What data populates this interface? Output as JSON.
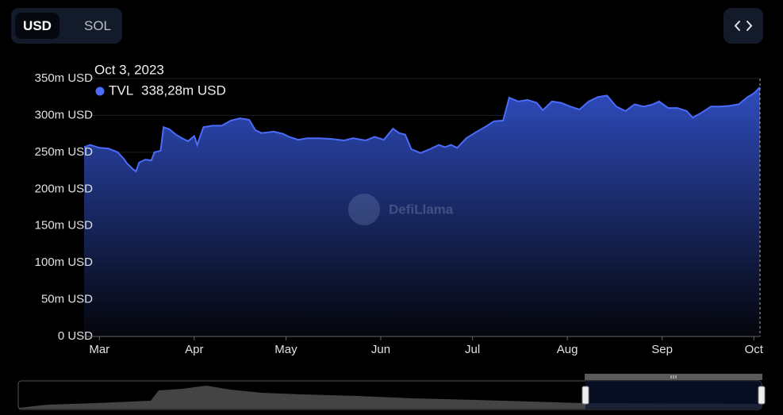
{
  "toggle": [
    "USD",
    "SOL"
  ],
  "watermark": "DefiLlama",
  "chart_data": {
    "type": "area",
    "tooltip": {
      "date": "Oct 3, 2023",
      "value_label": "338,28m USD"
    },
    "x": [
      -5,
      -3,
      0,
      3,
      6,
      8,
      9,
      11,
      12,
      13,
      15,
      17,
      18,
      20,
      21,
      23,
      25,
      27,
      29,
      31,
      32,
      34,
      37,
      40,
      43,
      46,
      49,
      51,
      53,
      57,
      60,
      62,
      65,
      68,
      72,
      76,
      80,
      83,
      87,
      90,
      93,
      96,
      98,
      100,
      102,
      105,
      108,
      111,
      113,
      115,
      117,
      120,
      123,
      126,
      129,
      132,
      134,
      137,
      140,
      143,
      145,
      148,
      151,
      154,
      157,
      160,
      163,
      166,
      169,
      172,
      175,
      178,
      181,
      183,
      186,
      189,
      192,
      194,
      197,
      200,
      203,
      206,
      209,
      212,
      214,
      216
    ],
    "series": [
      {
        "name": "TVL",
        "color": "#4b6bfb",
        "values": [
          257,
          260,
          256,
          255,
          250,
          241,
          235,
          227,
          224,
          236,
          240,
          239,
          250,
          252,
          284,
          281,
          274,
          269,
          265,
          272,
          260,
          284,
          286,
          286,
          293,
          296,
          294,
          280,
          276,
          278,
          275,
          271,
          267,
          269,
          269,
          268,
          266,
          269,
          266,
          271,
          267,
          282,
          276,
          274,
          254,
          249,
          254,
          260,
          257,
          260,
          256,
          269,
          277,
          284,
          292,
          293,
          324,
          319,
          321,
          317,
          307,
          319,
          317,
          312,
          308,
          319,
          325,
          327,
          312,
          306,
          315,
          312,
          315,
          319,
          310,
          310,
          306,
          297,
          304,
          312,
          312,
          313,
          315,
          325,
          330,
          338.28
        ]
      }
    ],
    "xlim": [
      -5,
      216
    ],
    "xticks": [
      {
        "value": 0,
        "label": "Mar"
      },
      {
        "value": 31,
        "label": "Apr"
      },
      {
        "value": 61,
        "label": "May"
      },
      {
        "value": 92,
        "label": "Jun"
      },
      {
        "value": 122,
        "label": "Jul"
      },
      {
        "value": 153,
        "label": "Aug"
      },
      {
        "value": 184,
        "label": "Sep"
      },
      {
        "value": 214,
        "label": "Oct"
      }
    ],
    "ylim": [
      0,
      350
    ],
    "yticks": [
      {
        "value": 0,
        "label": "0 USD"
      },
      {
        "value": 50,
        "label": "50m USD"
      },
      {
        "value": 100,
        "label": "100m USD"
      },
      {
        "value": 150,
        "label": "150m USD"
      },
      {
        "value": 200,
        "label": "200m USD"
      },
      {
        "value": 250,
        "label": "250m USD"
      },
      {
        "value": 300,
        "label": "300m USD"
      },
      {
        "value": 350,
        "label": "350m USD"
      }
    ],
    "grid": true
  }
}
